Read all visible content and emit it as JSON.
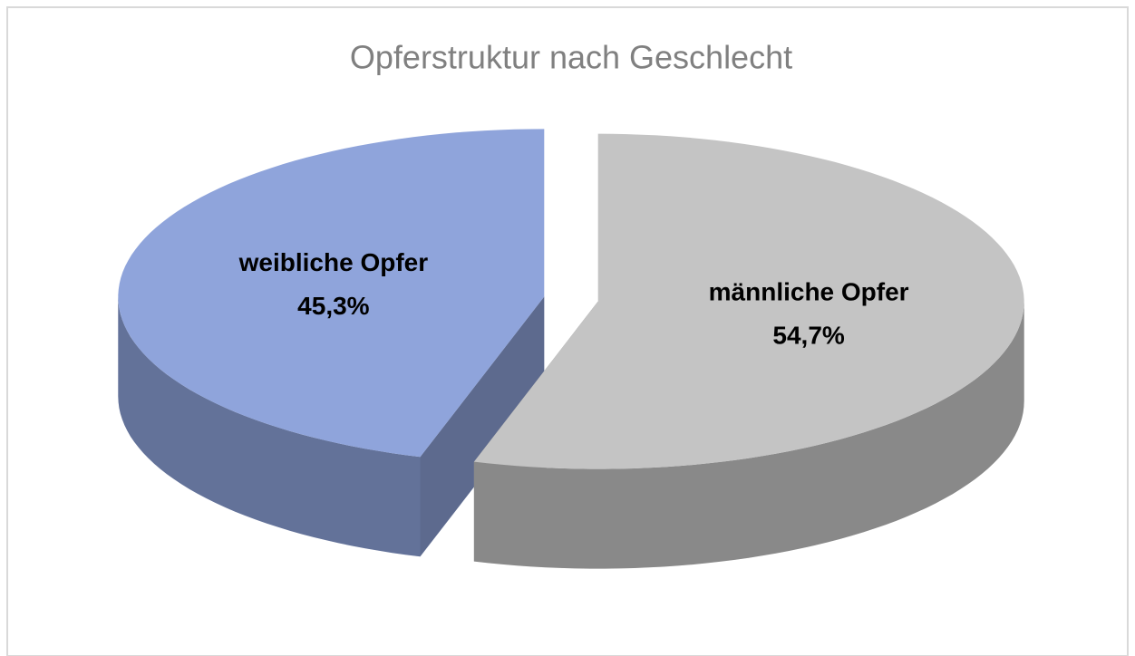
{
  "chart_data": {
    "type": "pie",
    "title": "Opferstruktur nach Geschlecht",
    "categories": [
      "weibliche Opfer",
      "männliche Opfer"
    ],
    "values": [
      45.3,
      54.7
    ],
    "value_labels": [
      "45,3%",
      "54,7%"
    ],
    "colors": [
      "#8fa4db",
      "#c4c4c4"
    ]
  }
}
